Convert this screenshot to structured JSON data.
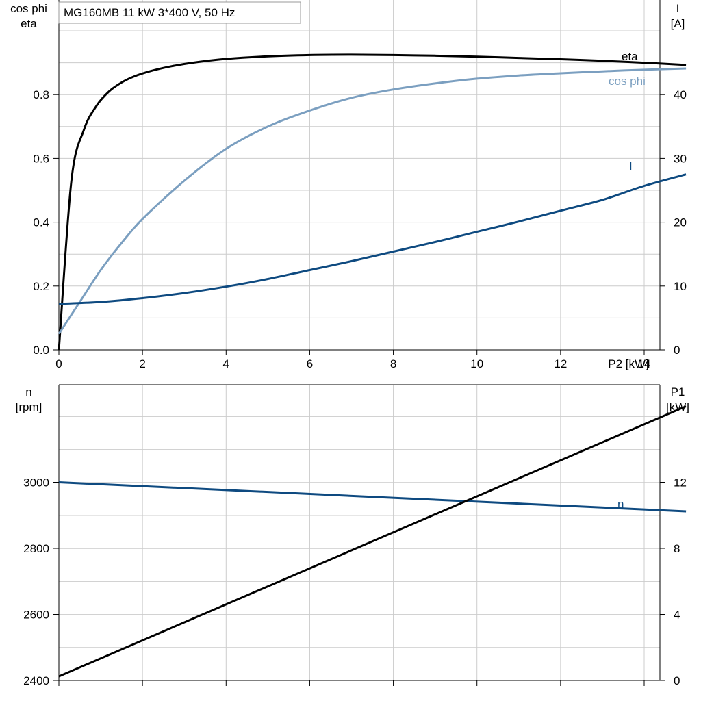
{
  "title_box": "MG160MB   11 kW   3*400 V, 50 Hz",
  "colors": {
    "eta": "#000000",
    "cos_phi": "#7b9fc0",
    "I": "#0e4a80",
    "n": "#0e4a80",
    "P1": "#000000",
    "grid": "#cccccc"
  },
  "chart_data": [
    {
      "type": "line",
      "xlabel": "P2 [kW]",
      "xlim": [
        0,
        16
      ],
      "x_ticks": [
        0,
        2,
        4,
        6,
        8,
        10,
        12,
        14
      ],
      "y_left": {
        "label_lines": [
          "cos phi",
          "eta"
        ],
        "lim": [
          0,
          1.0
        ],
        "ticks": [
          "0.0",
          "0.2",
          "0.4",
          "0.6",
          "0.8"
        ],
        "tick_values": [
          0,
          0.2,
          0.4,
          0.6,
          0.8
        ]
      },
      "y_right": {
        "label_lines": [
          "I",
          "[A]"
        ],
        "lim": [
          0,
          50
        ],
        "ticks": [
          "0",
          "10",
          "20",
          "30",
          "40"
        ],
        "tick_values": [
          0,
          10,
          20,
          30,
          40
        ]
      },
      "grid": true,
      "series": [
        {
          "name": "eta",
          "axis": "left",
          "color_key": "eta",
          "x": [
            0,
            0.3,
            0.6,
            0.9,
            1.2,
            1.5,
            1.8,
            2.2,
            2.7,
            3.2,
            4,
            5,
            6,
            7,
            8,
            9,
            10,
            11,
            12,
            13,
            14,
            15
          ],
          "y": [
            0.0,
            0.53,
            0.69,
            0.765,
            0.81,
            0.838,
            0.857,
            0.874,
            0.889,
            0.9,
            0.912,
            0.92,
            0.924,
            0.925,
            0.924,
            0.922,
            0.919,
            0.915,
            0.911,
            0.906,
            0.9,
            0.893
          ]
        },
        {
          "name": "cos phi",
          "axis": "left",
          "color_key": "cos_phi",
          "x": [
            0,
            0.5,
            1,
            1.5,
            2,
            3,
            4,
            5,
            6,
            7,
            8,
            9,
            10,
            11,
            12,
            13,
            14,
            15
          ],
          "y": [
            0.05,
            0.15,
            0.25,
            0.335,
            0.41,
            0.53,
            0.63,
            0.7,
            0.75,
            0.79,
            0.816,
            0.835,
            0.85,
            0.86,
            0.867,
            0.873,
            0.878,
            0.882
          ]
        },
        {
          "name": "I",
          "axis": "right",
          "color_key": "I",
          "x": [
            0,
            1,
            2,
            3,
            4,
            5,
            6,
            7,
            8,
            9,
            10,
            11,
            12,
            13,
            14,
            15
          ],
          "y": [
            7.2,
            7.5,
            8.1,
            8.9,
            9.9,
            11.1,
            12.5,
            13.9,
            15.4,
            16.9,
            18.5,
            20.1,
            21.8,
            23.5,
            25.7,
            27.5
          ]
        }
      ]
    },
    {
      "type": "line",
      "xlabel": "",
      "xlim": [
        0,
        16
      ],
      "x_ticks": [
        0,
        2,
        4,
        6,
        8,
        10,
        12,
        14
      ],
      "y_left": {
        "label_lines": [
          "n",
          "[rpm]"
        ],
        "lim": [
          2400,
          3200
        ],
        "ticks": [
          "2400",
          "2600",
          "2800",
          "3000"
        ],
        "tick_values": [
          2400,
          2600,
          2800,
          3000
        ]
      },
      "y_right": {
        "label_lines": [
          "P1",
          "[kW]"
        ],
        "lim": [
          0,
          16
        ],
        "ticks": [
          "0",
          "4",
          "8",
          "12"
        ],
        "tick_values": [
          0,
          4,
          8,
          12
        ]
      },
      "grid": true,
      "series": [
        {
          "name": "n",
          "axis": "left",
          "color_key": "n",
          "x": [
            0,
            15
          ],
          "y": [
            3000,
            2912
          ]
        },
        {
          "name": "",
          "axis": "right",
          "color_key": "P1",
          "x": [
            0,
            15
          ],
          "y": [
            0.25,
            16.6
          ]
        }
      ]
    }
  ]
}
